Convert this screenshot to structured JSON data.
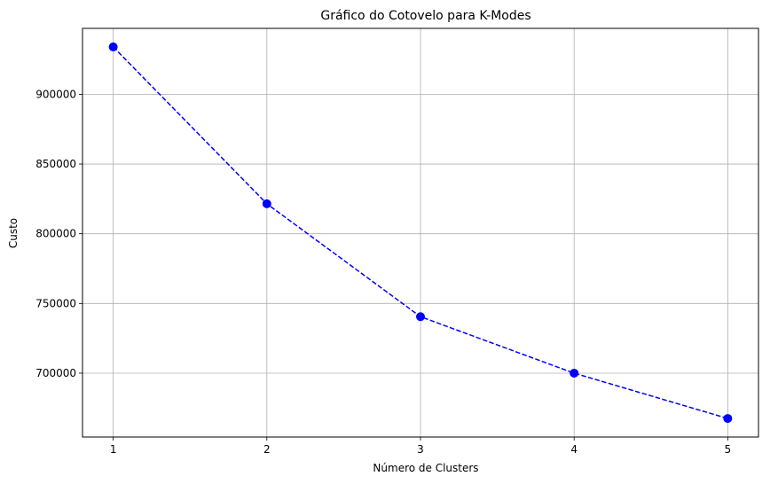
{
  "chart_data": {
    "type": "line",
    "title": "Gráfico do Cotovelo para K-Modes",
    "xlabel": "Número de Clusters",
    "ylabel": "Custo",
    "x": [
      1,
      2,
      3,
      4,
      5
    ],
    "series": [
      {
        "values": [
          934000,
          821500,
          740500,
          700000,
          667500
        ],
        "color": "#0000ff",
        "line_style": "dashed",
        "marker": "circle"
      }
    ],
    "xticks": [
      1,
      2,
      3,
      4,
      5
    ],
    "xtick_labels": [
      "1",
      "2",
      "3",
      "4",
      "5"
    ],
    "yticks": [
      700000,
      750000,
      800000,
      850000,
      900000
    ],
    "ytick_labels": [
      "700000",
      "750000",
      "800000",
      "850000",
      "900000"
    ],
    "xlim": [
      0.8,
      5.2
    ],
    "ylim": [
      654200,
      947300
    ],
    "grid": true,
    "grid_color": "#b0b0b0",
    "axis_color": "#000000"
  }
}
